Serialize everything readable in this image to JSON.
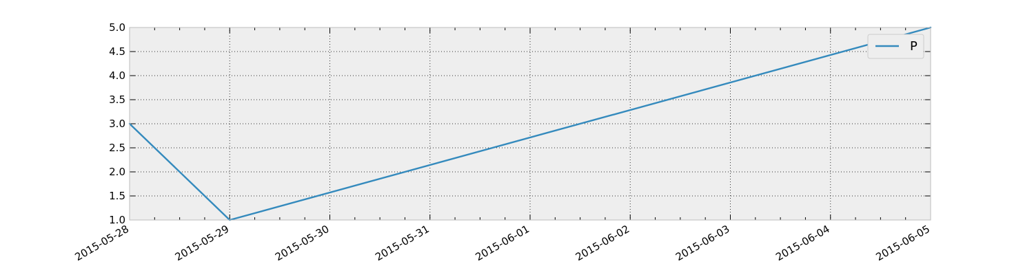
{
  "chart_data": {
    "type": "line",
    "title": "",
    "xlabel": "",
    "ylabel": "",
    "x": [
      "2015-05-28",
      "2015-05-29",
      "2015-06-05"
    ],
    "x_ticks": [
      "2015-05-28",
      "2015-05-29",
      "2015-05-30",
      "2015-05-31",
      "2015-06-01",
      "2015-06-02",
      "2015-06-03",
      "2015-06-04",
      "2015-06-05"
    ],
    "xlim": [
      "2015-05-28",
      "2015-06-05"
    ],
    "y_ticks": [
      "1.0",
      "1.5",
      "2.0",
      "2.5",
      "3.0",
      "3.5",
      "4.0",
      "4.5",
      "5.0"
    ],
    "ylim": [
      1.0,
      5.0
    ],
    "grid": true,
    "legend_position": "upper-right",
    "series": [
      {
        "name": "P",
        "color": "#348ABD",
        "values": [
          3.0,
          1.0,
          5.0
        ]
      }
    ],
    "axes_background": "#EEEEEE"
  }
}
